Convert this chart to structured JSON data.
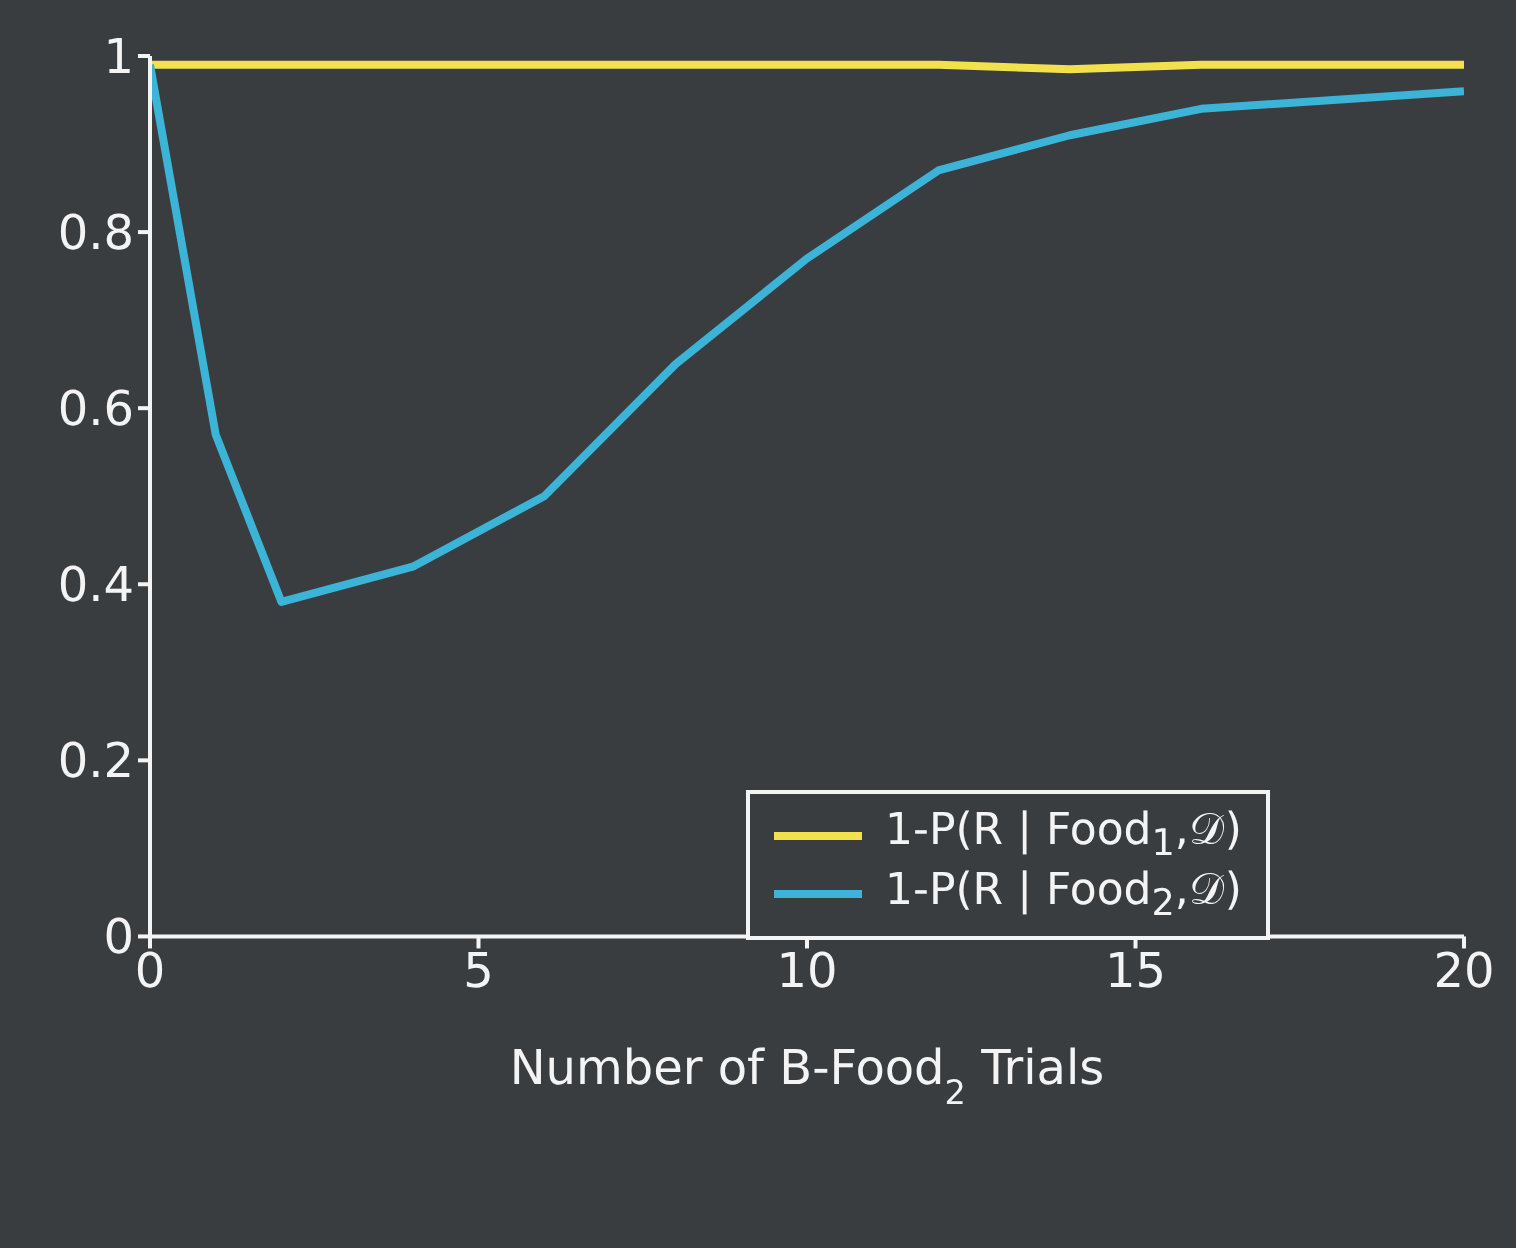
{
  "chart_data": {
    "type": "line",
    "xlabel": "Number of B-Food$_{2}$ Trials",
    "x": [
      0,
      1,
      2,
      4,
      6,
      8,
      10,
      12,
      14,
      16,
      20
    ],
    "series": [
      {
        "name": "1-P(R | Food$_{1}$,𝒟)",
        "color": "#f2e14c",
        "values": [
          0.99,
          0.99,
          0.99,
          0.99,
          0.99,
          0.99,
          0.99,
          0.99,
          0.985,
          0.99,
          0.99
        ]
      },
      {
        "name": "1-P(R | Food$_{2}$,𝒟)",
        "color": "#3bb4d8",
        "values": [
          0.99,
          0.57,
          0.38,
          0.42,
          0.5,
          0.65,
          0.77,
          0.87,
          0.91,
          0.94,
          0.96
        ]
      }
    ],
    "xlim": [
      0,
      20
    ],
    "xticks": [
      0,
      5,
      10,
      15,
      20
    ],
    "ylim": [
      0,
      1
    ],
    "yticks": [
      0,
      0.2,
      0.4,
      0.6,
      0.8,
      1
    ],
    "legend": "bottom right",
    "marker": "none",
    "line_style": "solid",
    "grid": false
  }
}
